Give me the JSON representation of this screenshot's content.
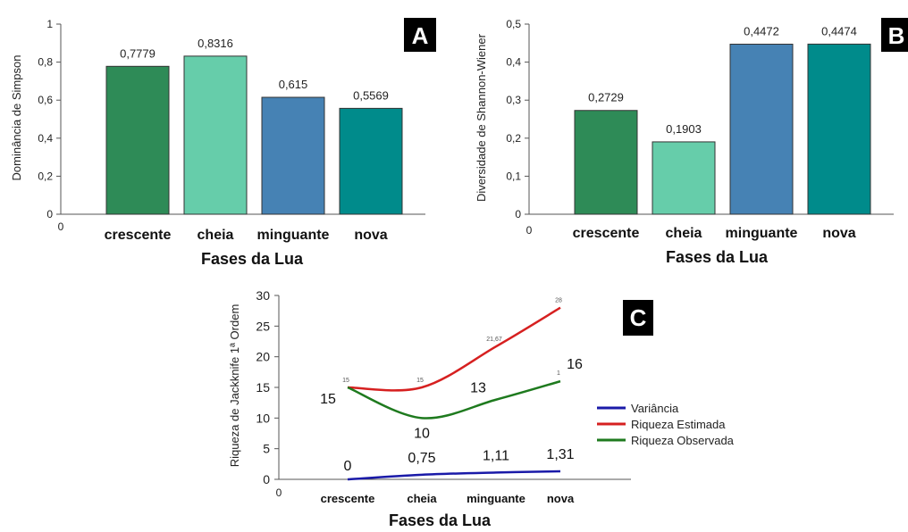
{
  "chart_data": [
    {
      "panel": "A",
      "type": "bar",
      "categories": [
        "crescente",
        "cheia",
        "minguante",
        "nova"
      ],
      "values": [
        0.7779,
        0.8316,
        0.615,
        0.5569
      ],
      "value_labels": [
        "0,7779",
        "0,8316",
        "0,615",
        "0,5569"
      ],
      "colors": [
        "#2e8b57",
        "#66cdaa",
        "#4682b4",
        "#008b8b"
      ],
      "xlabel": "Fases da Lua",
      "ylabel": "Dominância de Simpson",
      "ylim": [
        0,
        1
      ],
      "yticks": [
        0,
        0.2,
        0.4,
        0.6,
        0.8,
        1
      ],
      "ytick_labels": [
        "0",
        "0,2",
        "0,4",
        "0,6",
        "0,8",
        "1"
      ],
      "origin_label": "0",
      "grid": false
    },
    {
      "panel": "B",
      "type": "bar",
      "categories": [
        "crescente",
        "cheia",
        "minguante",
        "nova"
      ],
      "values": [
        0.2729,
        0.1903,
        0.4472,
        0.4474
      ],
      "value_labels": [
        "0,2729",
        "0,1903",
        "0,4472",
        "0,4474"
      ],
      "colors": [
        "#2e8b57",
        "#66cdaa",
        "#4682b4",
        "#008b8b"
      ],
      "xlabel": "Fases da Lua",
      "ylabel": "Diversidade de Shannon-Wiener",
      "ylim": [
        0,
        0.5
      ],
      "yticks": [
        0,
        0.1,
        0.2,
        0.3,
        0.4,
        0.5
      ],
      "ytick_labels": [
        "0",
        "0,1",
        "0,2",
        "0,3",
        "0,4",
        "0,5"
      ],
      "origin_label": "0",
      "grid": false
    },
    {
      "panel": "C",
      "type": "line",
      "categories": [
        "crescente",
        "cheia",
        "minguante",
        "nova"
      ],
      "xlabel": "Fases da Lua",
      "ylabel": "Riqueza de Jackknife 1ª Ordem",
      "ylim": [
        0,
        30
      ],
      "yticks": [
        0,
        5,
        10,
        15,
        20,
        25,
        30
      ],
      "ytick_labels": [
        "0",
        "5",
        "10",
        "15",
        "20",
        "25",
        "30"
      ],
      "origin_label": "0",
      "legend_position": "right",
      "grid": false,
      "series": [
        {
          "name": "Variância",
          "color": "#1a1aa8",
          "values": [
            0,
            0.75,
            1.11,
            1.31
          ],
          "point_labels": [
            "0",
            "0,75",
            "1,11",
            "1,31"
          ],
          "label_size": "large"
        },
        {
          "name": "Riqueza Estimada",
          "color": "#d62020",
          "values": [
            15,
            15,
            21.67,
            28
          ],
          "point_labels": [
            "15",
            "15",
            "21,67",
            "28"
          ],
          "label_size": "small"
        },
        {
          "name": "Riqueza Observada",
          "color": "#1e7a1e",
          "values": [
            15,
            10,
            13,
            16
          ],
          "point_labels": [
            "15",
            "10",
            "13",
            "16"
          ],
          "label_size": "large"
        }
      ],
      "extra_small_label": "1"
    }
  ],
  "panel_badges": [
    "A",
    "B",
    "C"
  ]
}
